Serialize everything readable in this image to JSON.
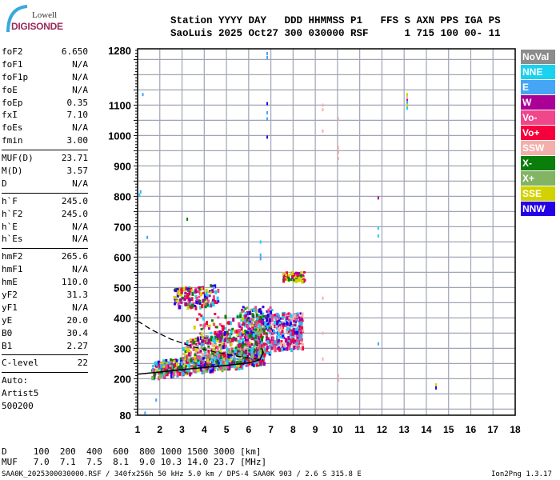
{
  "logo": {
    "line1": "Lowell",
    "line2": "DIGISONDE"
  },
  "header": {
    "labels": "Station YYYY DAY   DDD HHMMSS P1   FFS S AXN PPS IGA PS",
    "values": "SaoLuis 2025 Oct27 300 030000 RSF      1 715 100 00- 11"
  },
  "params": [
    [
      {
        "k": "foF2",
        "v": "6.650"
      },
      {
        "k": "foF1",
        "v": "N/A"
      },
      {
        "k": "foF1p",
        "v": "N/A"
      },
      {
        "k": "foE",
        "v": "N/A"
      },
      {
        "k": "foEp",
        "v": "0.35"
      },
      {
        "k": "fxI",
        "v": "7.10"
      },
      {
        "k": "foEs",
        "v": "N/A"
      },
      {
        "k": "fmin",
        "v": "3.00"
      }
    ],
    [
      {
        "k": "MUF(D)",
        "v": "23.71"
      },
      {
        "k": "M(D)",
        "v": "3.57"
      },
      {
        "k": "D",
        "v": "N/A"
      }
    ],
    [
      {
        "k": "h`F",
        "v": "245.0"
      },
      {
        "k": "h`F2",
        "v": "245.0"
      },
      {
        "k": "h`E",
        "v": "N/A"
      },
      {
        "k": "h`Es",
        "v": "N/A"
      }
    ],
    [
      {
        "k": "hmF2",
        "v": "265.6"
      },
      {
        "k": "hmF1",
        "v": "N/A"
      },
      {
        "k": "hmE",
        "v": "110.0"
      },
      {
        "k": "yF2",
        "v": "31.3"
      },
      {
        "k": "yF1",
        "v": "N/A"
      },
      {
        "k": "yE",
        "v": "20.0"
      },
      {
        "k": "B0",
        "v": "30.4"
      },
      {
        "k": "B1",
        "v": "2.27"
      }
    ],
    [
      {
        "k": "C-level",
        "v": "22"
      }
    ]
  ],
  "autoscaling": [
    "Auto:",
    "Artist5",
    "500200"
  ],
  "bottom": {
    "d_row": "D     100  200  400  600  800 1000 1500 3000 [km]",
    "muf_row": "MUF   7.0  7.1  7.5  8.1  9.0 10.3 14.0 23.7 [MHz]",
    "footer_left": "SAA0K_2025300030000.RSF / 340fx256h 50 kHz 5.0 km / DPS-4 SAA0K 903 / 2.6 S 315.8 E",
    "footer_right": "Ion2Png 1.3.17"
  },
  "chart_data": {
    "type": "scatter",
    "xlim": [
      1,
      18
    ],
    "ylim": [
      80,
      1280
    ],
    "xticks": [
      1,
      2,
      3,
      4,
      5,
      6,
      7,
      8,
      9,
      10,
      11,
      12,
      13,
      14,
      15,
      16,
      17,
      18
    ],
    "yticks": [
      80,
      200,
      300,
      400,
      500,
      600,
      700,
      800,
      900,
      1000,
      1100,
      1280
    ],
    "grid": true,
    "legend_position": "right",
    "legend": [
      {
        "name": "NoVal",
        "color": "#8c8c8c"
      },
      {
        "name": "NNE",
        "color": "#19d2f0"
      },
      {
        "name": "E",
        "color": "#46a5f5"
      },
      {
        "name": "W",
        "color": "#aa0096"
      },
      {
        "name": "Vo-",
        "color": "#f0468c"
      },
      {
        "name": "Vo+",
        "color": "#f5003c"
      },
      {
        "name": "SSW",
        "color": "#f5afaa"
      },
      {
        "name": "X-",
        "color": "#0a7d0a"
      },
      {
        "name": "X+",
        "color": "#82b464"
      },
      {
        "name": "SSE",
        "color": "#d2d200"
      },
      {
        "name": "NNW",
        "color": "#2300e6"
      }
    ],
    "trace_virtual_height": [
      [
        1,
        215
      ],
      [
        2,
        222
      ],
      [
        3,
        230
      ],
      [
        4,
        237
      ],
      [
        5,
        244
      ],
      [
        6,
        252
      ],
      [
        6.5,
        262
      ],
      [
        6.65,
        285
      ],
      [
        6.6,
        300
      ]
    ],
    "profile_real_height_dashed": [
      [
        1,
        390
      ],
      [
        1.6,
        362
      ],
      [
        2.5,
        330
      ],
      [
        3.5,
        305
      ],
      [
        4.5,
        288
      ],
      [
        5.5,
        274
      ],
      [
        6.3,
        265
      ],
      [
        6.65,
        262
      ]
    ],
    "echo_regions": [
      {
        "f": [
          1.6,
          6.7
        ],
        "h": [
          205,
          260
        ],
        "n": 650,
        "tilt": 9,
        "colors": [
          10,
          3,
          4,
          9,
          7,
          5,
          8,
          1,
          2
        ]
      },
      {
        "f": [
          3.0,
          6.6
        ],
        "h": [
          250,
          330
        ],
        "n": 320,
        "tilt": 14,
        "colors": [
          3,
          4,
          9,
          7,
          5,
          8,
          1,
          10,
          6
        ]
      },
      {
        "f": [
          5.5,
          7.0
        ],
        "h": [
          280,
          440
        ],
        "n": 260,
        "tilt": 0,
        "colors": [
          10,
          3,
          4,
          5,
          7,
          2,
          1,
          8
        ]
      },
      {
        "f": [
          7.0,
          8.4
        ],
        "h": [
          300,
          420
        ],
        "n": 280,
        "tilt": 0,
        "colors": [
          5,
          4,
          3,
          10,
          2,
          1,
          6
        ]
      },
      {
        "f": [
          2.6,
          4.6
        ],
        "h": [
          430,
          500
        ],
        "n": 150,
        "tilt": 7,
        "colors": [
          9,
          3,
          4,
          10,
          5,
          7,
          1
        ]
      },
      {
        "f": [
          7.5,
          8.5
        ],
        "h": [
          525,
          555
        ],
        "n": 60,
        "tilt": 0,
        "colors": [
          9,
          9,
          7,
          3,
          5
        ]
      },
      {
        "f": [
          3.5,
          6.3
        ],
        "h": [
          330,
          420
        ],
        "n": 90,
        "tilt": 0,
        "colors": [
          9,
          4,
          3,
          7,
          1,
          5
        ]
      }
    ],
    "isolated_echoes": [
      [
        6.8,
        1275,
        2
      ],
      [
        6.8,
        1262,
        2
      ],
      [
        6.8,
        1110,
        10
      ],
      [
        6.8,
        1080,
        2
      ],
      [
        6.8,
        1060,
        2
      ],
      [
        6.8,
        1000,
        10
      ],
      [
        6.5,
        612,
        2
      ],
      [
        6.5,
        600,
        2
      ],
      [
        6.5,
        655,
        1
      ],
      [
        10,
        1060,
        6
      ],
      [
        10,
        965,
        6
      ],
      [
        10,
        950,
        6
      ],
      [
        10,
        930,
        6
      ],
      [
        10,
        310,
        6
      ],
      [
        10,
        215,
        6
      ],
      [
        10,
        200,
        6
      ],
      [
        9.3,
        1105,
        6
      ],
      [
        9.3,
        1090,
        6
      ],
      [
        9.3,
        1020,
        6
      ],
      [
        9.3,
        470,
        6
      ],
      [
        9.3,
        355,
        6
      ],
      [
        9.3,
        270,
        6
      ],
      [
        13.1,
        1140,
        9
      ],
      [
        13.1,
        1130,
        6
      ],
      [
        13.1,
        1120,
        3
      ],
      [
        13.1,
        1115,
        2
      ],
      [
        13.1,
        1105,
        9
      ],
      [
        13.1,
        1095,
        1
      ],
      [
        14.4,
        185,
        9
      ],
      [
        14.4,
        175,
        10
      ],
      [
        11.8,
        800,
        3
      ],
      [
        11.8,
        700,
        1
      ],
      [
        11.8,
        675,
        1
      ],
      [
        11.8,
        320,
        2
      ],
      [
        1.2,
        1140,
        2
      ],
      [
        1.1,
        820,
        2
      ],
      [
        1.05,
        810,
        1
      ],
      [
        1.4,
        670,
        2
      ],
      [
        1.8,
        135,
        2
      ],
      [
        1.3,
        92,
        2
      ],
      [
        3.2,
        730,
        7
      ]
    ]
  }
}
